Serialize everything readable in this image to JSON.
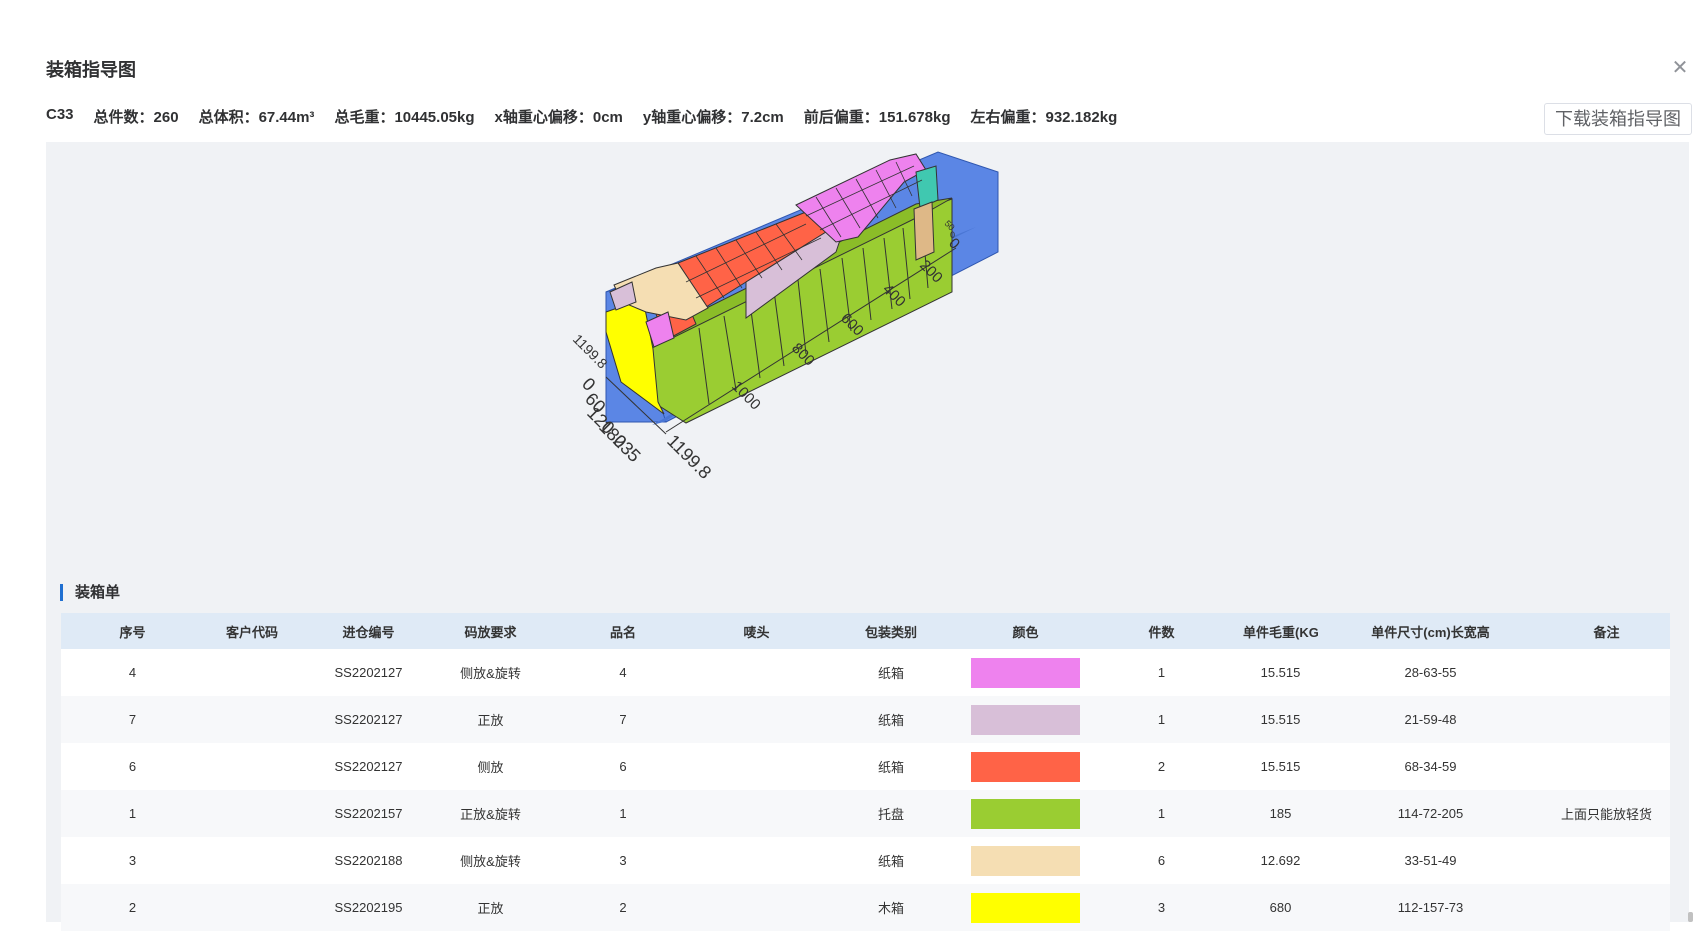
{
  "dialog": {
    "title": "装箱指导图",
    "close_icon": "close-icon",
    "download_label": "下载装箱指导图"
  },
  "stats": {
    "container": "C33",
    "total_count": "总件数：260",
    "total_volume": "总体积：67.44m³",
    "gross_weight": "总毛重：10445.05kg",
    "x_offset": "x轴重心偏移：0cm",
    "y_offset": "y轴重心偏移：7.2cm",
    "front_back": "前后偏重：151.678kg",
    "left_right": "左右偏重：932.182kg"
  },
  "chart": {
    "length_ticks": [
      "0",
      "200",
      "400",
      "600",
      "800",
      "1000",
      "1199.8"
    ],
    "width_ticks": [
      "0",
      "60",
      "120",
      "180",
      "235"
    ],
    "height_end_label": "1199.8",
    "small_top_labels": [
      "0",
      "50"
    ]
  },
  "packing_list": {
    "title": "装箱单",
    "columns": [
      "序号",
      "客户代码",
      "进仓编号",
      "码放要求",
      "品名",
      "唛头",
      "包装类别",
      "颜色",
      "件数",
      "单件毛重(KG)",
      "单件尺寸(cm)长宽高",
      "备注"
    ],
    "rows": [
      {
        "seq": "4",
        "customer": "",
        "entry_no": "SS2202127",
        "stacking": "侧放&旋转",
        "name": "4",
        "mark": "",
        "package": "纸箱",
        "color": "#ee82ee",
        "count": "1",
        "weight": "15.515",
        "size": "28-63-55",
        "note": ""
      },
      {
        "seq": "7",
        "customer": "",
        "entry_no": "SS2202127",
        "stacking": "正放",
        "name": "7",
        "mark": "",
        "package": "纸箱",
        "color": "#d8bfd8",
        "count": "1",
        "weight": "15.515",
        "size": "21-59-48",
        "note": ""
      },
      {
        "seq": "6",
        "customer": "",
        "entry_no": "SS2202127",
        "stacking": "侧放",
        "name": "6",
        "mark": "",
        "package": "纸箱",
        "color": "#ff6347",
        "count": "2",
        "weight": "15.515",
        "size": "68-34-59",
        "note": ""
      },
      {
        "seq": "1",
        "customer": "",
        "entry_no": "SS2202157",
        "stacking": "正放&旋转",
        "name": "1",
        "mark": "",
        "package": "托盘",
        "color": "#9acd32",
        "count": "1",
        "weight": "185",
        "size": "114-72-205",
        "note": "上面只能放轻货"
      },
      {
        "seq": "3",
        "customer": "",
        "entry_no": "SS2202188",
        "stacking": "侧放&旋转",
        "name": "3",
        "mark": "",
        "package": "纸箱",
        "color": "#f5deb3",
        "count": "6",
        "weight": "12.692",
        "size": "33-51-49",
        "note": ""
      },
      {
        "seq": "2",
        "customer": "",
        "entry_no": "SS2202195",
        "stacking": "正放",
        "name": "2",
        "mark": "",
        "package": "木箱",
        "color": "#ffff00",
        "count": "3",
        "weight": "680",
        "size": "112-157-73",
        "note": ""
      }
    ]
  }
}
